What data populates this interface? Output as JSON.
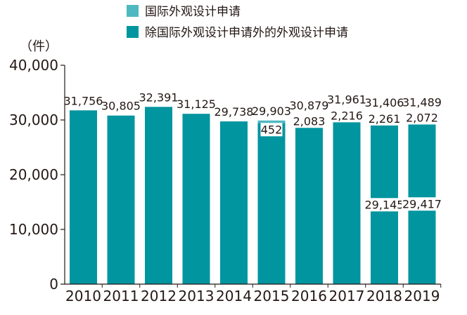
{
  "chart_data": {
    "type": "bar",
    "stacked": true,
    "unit_label": "（件）",
    "categories": [
      "2010",
      "2011",
      "2012",
      "2013",
      "2014",
      "2015",
      "2016",
      "2017",
      "2018",
      "2019"
    ],
    "series": [
      {
        "name": "除国际外观设计申请外的外观设计申请",
        "color": "#00959f",
        "values": [
          31756,
          30805,
          32391,
          31125,
          29738,
          29451,
          28796,
          29745,
          29145,
          29417
        ],
        "labels": [
          "",
          "",
          "",
          "",
          "",
          "",
          "",
          "",
          "29,145",
          "29,417"
        ]
      },
      {
        "name": "国际外观设计申请",
        "color": "#4fb9c1",
        "values": [
          0,
          0,
          0,
          0,
          0,
          452,
          2083,
          2216,
          2261,
          2072
        ],
        "labels": [
          "",
          "",
          "",
          "",
          "",
          "452",
          "2,083",
          "2,216",
          "2,261",
          "2,072"
        ]
      }
    ],
    "total_labels": [
      "31,756",
      "30,805",
      "32,391",
      "31,125",
      "29,738",
      "29,903",
      "30,879",
      "31,961",
      "31,406",
      "31,489"
    ],
    "ylim": [
      0,
      40000
    ],
    "yticks": [
      0,
      10000,
      20000,
      30000,
      40000
    ],
    "ytick_labels": [
      "0",
      "10,000",
      "20,000",
      "30,000",
      "40,000"
    ],
    "grid": false,
    "legend_position": "top"
  }
}
